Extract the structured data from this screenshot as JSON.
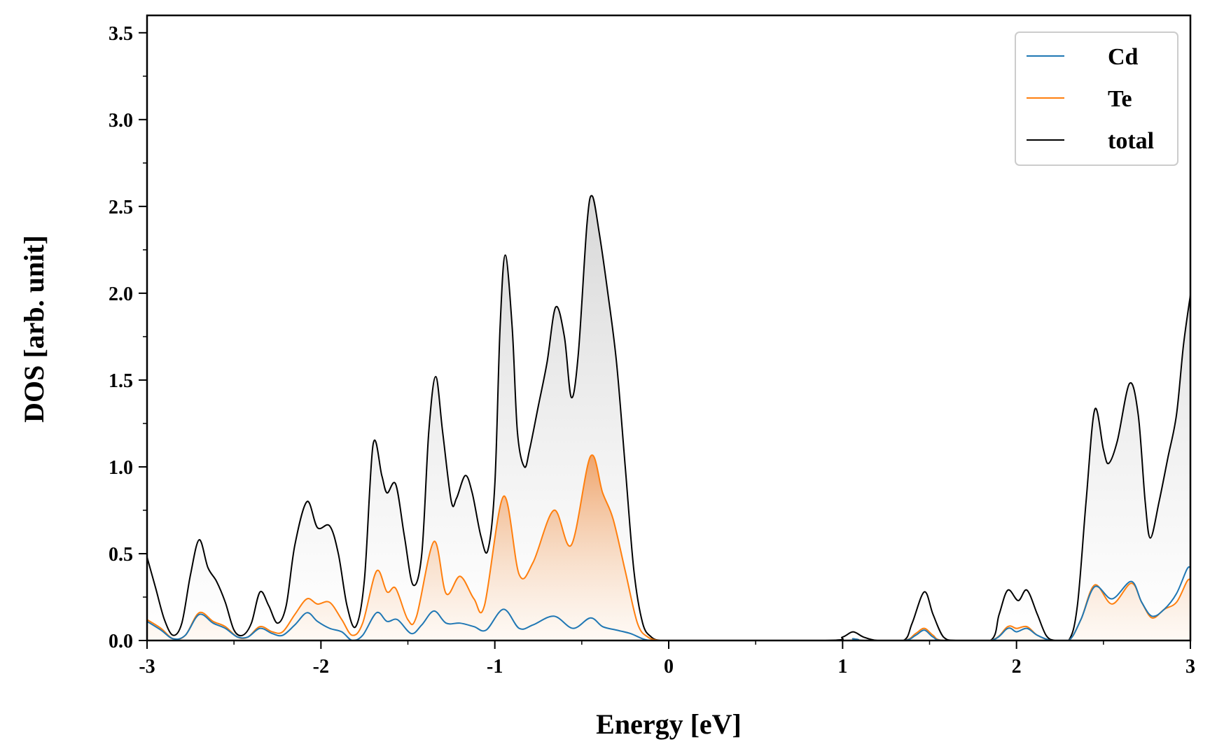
{
  "chart_data": {
    "type": "area",
    "xlabel": "Energy [eV]",
    "ylabel": "DOS [arb. unit]",
    "xlim": [
      -3,
      3
    ],
    "ylim": [
      0,
      3.6
    ],
    "xticks": [
      -3,
      -2,
      -1,
      0,
      1,
      2,
      3
    ],
    "xtick_labels": [
      "-3",
      "-2",
      "-1",
      "0",
      "1",
      "2",
      "3"
    ],
    "yticks": [
      0,
      0.5,
      1,
      1.5,
      2,
      2.5,
      3,
      3.5
    ],
    "ytick_labels": [
      "0.0",
      "0.5",
      "1.0",
      "1.5",
      "2.0",
      "2.5",
      "3.0",
      "3.5"
    ],
    "grid": false,
    "legend": "top-right",
    "series": [
      {
        "name": "Cd",
        "color": "#1f77b4",
        "filled": false,
        "points": [
          [
            -3.0,
            0.11
          ],
          [
            -2.92,
            0.06
          ],
          [
            -2.85,
            0.01
          ],
          [
            -2.78,
            0.03
          ],
          [
            -2.7,
            0.15
          ],
          [
            -2.62,
            0.1
          ],
          [
            -2.55,
            0.07
          ],
          [
            -2.48,
            0.02
          ],
          [
            -2.42,
            0.02
          ],
          [
            -2.35,
            0.07
          ],
          [
            -2.28,
            0.04
          ],
          [
            -2.22,
            0.03
          ],
          [
            -2.15,
            0.09
          ],
          [
            -2.08,
            0.16
          ],
          [
            -2.02,
            0.11
          ],
          [
            -1.95,
            0.07
          ],
          [
            -1.88,
            0.05
          ],
          [
            -1.82,
            0.0
          ],
          [
            -1.76,
            0.03
          ],
          [
            -1.68,
            0.16
          ],
          [
            -1.62,
            0.11
          ],
          [
            -1.56,
            0.12
          ],
          [
            -1.48,
            0.04
          ],
          [
            -1.42,
            0.09
          ],
          [
            -1.35,
            0.17
          ],
          [
            -1.28,
            0.1
          ],
          [
            -1.2,
            0.1
          ],
          [
            -1.12,
            0.08
          ],
          [
            -1.05,
            0.06
          ],
          [
            -0.95,
            0.18
          ],
          [
            -0.86,
            0.07
          ],
          [
            -0.78,
            0.09
          ],
          [
            -0.66,
            0.14
          ],
          [
            -0.55,
            0.07
          ],
          [
            -0.45,
            0.13
          ],
          [
            -0.38,
            0.08
          ],
          [
            -0.3,
            0.06
          ],
          [
            -0.22,
            0.04
          ],
          [
            -0.15,
            0.01
          ],
          [
            -0.1,
            0.0
          ],
          [
            0.0,
            0.0
          ],
          [
            1.0,
            0.0
          ],
          [
            1.06,
            0.01
          ],
          [
            1.12,
            0.0
          ],
          [
            1.35,
            0.0
          ],
          [
            1.42,
            0.03
          ],
          [
            1.47,
            0.06
          ],
          [
            1.52,
            0.02
          ],
          [
            1.58,
            0.0
          ],
          [
            1.85,
            0.0
          ],
          [
            1.95,
            0.07
          ],
          [
            2.0,
            0.05
          ],
          [
            2.06,
            0.07
          ],
          [
            2.12,
            0.03
          ],
          [
            2.2,
            0.0
          ],
          [
            2.3,
            0.0
          ],
          [
            2.37,
            0.12
          ],
          [
            2.45,
            0.31
          ],
          [
            2.55,
            0.24
          ],
          [
            2.66,
            0.34
          ],
          [
            2.72,
            0.22
          ],
          [
            2.78,
            0.14
          ],
          [
            2.85,
            0.18
          ],
          [
            2.92,
            0.27
          ],
          [
            2.98,
            0.41
          ],
          [
            3.0,
            0.42
          ]
        ]
      },
      {
        "name": "Te",
        "color": "#ff7f0e",
        "filled": true,
        "points": [
          [
            -3.0,
            0.12
          ],
          [
            -2.92,
            0.07
          ],
          [
            -2.85,
            0.01
          ],
          [
            -2.78,
            0.03
          ],
          [
            -2.7,
            0.16
          ],
          [
            -2.62,
            0.11
          ],
          [
            -2.55,
            0.08
          ],
          [
            -2.48,
            0.02
          ],
          [
            -2.42,
            0.02
          ],
          [
            -2.35,
            0.08
          ],
          [
            -2.28,
            0.05
          ],
          [
            -2.22,
            0.05
          ],
          [
            -2.15,
            0.15
          ],
          [
            -2.08,
            0.24
          ],
          [
            -2.02,
            0.21
          ],
          [
            -1.95,
            0.22
          ],
          [
            -1.88,
            0.12
          ],
          [
            -1.82,
            0.03
          ],
          [
            -1.76,
            0.1
          ],
          [
            -1.68,
            0.4
          ],
          [
            -1.62,
            0.28
          ],
          [
            -1.57,
            0.3
          ],
          [
            -1.5,
            0.12
          ],
          [
            -1.45,
            0.14
          ],
          [
            -1.35,
            0.57
          ],
          [
            -1.28,
            0.27
          ],
          [
            -1.2,
            0.37
          ],
          [
            -1.12,
            0.24
          ],
          [
            -1.06,
            0.2
          ],
          [
            -0.95,
            0.83
          ],
          [
            -0.86,
            0.38
          ],
          [
            -0.78,
            0.45
          ],
          [
            -0.66,
            0.75
          ],
          [
            -0.56,
            0.55
          ],
          [
            -0.45,
            1.06
          ],
          [
            -0.38,
            0.85
          ],
          [
            -0.32,
            0.7
          ],
          [
            -0.25,
            0.4
          ],
          [
            -0.18,
            0.1
          ],
          [
            -0.12,
            0.02
          ],
          [
            -0.05,
            0.0
          ],
          [
            0.0,
            0.0
          ],
          [
            1.0,
            0.0
          ],
          [
            1.06,
            0.01
          ],
          [
            1.12,
            0.0
          ],
          [
            1.35,
            0.0
          ],
          [
            1.42,
            0.04
          ],
          [
            1.47,
            0.07
          ],
          [
            1.52,
            0.03
          ],
          [
            1.58,
            0.0
          ],
          [
            1.85,
            0.0
          ],
          [
            1.95,
            0.08
          ],
          [
            2.0,
            0.07
          ],
          [
            2.06,
            0.08
          ],
          [
            2.12,
            0.03
          ],
          [
            2.2,
            0.0
          ],
          [
            2.3,
            0.0
          ],
          [
            2.37,
            0.12
          ],
          [
            2.45,
            0.32
          ],
          [
            2.55,
            0.21
          ],
          [
            2.66,
            0.33
          ],
          [
            2.72,
            0.22
          ],
          [
            2.78,
            0.13
          ],
          [
            2.85,
            0.18
          ],
          [
            2.92,
            0.22
          ],
          [
            2.98,
            0.34
          ],
          [
            3.0,
            0.35
          ]
        ]
      },
      {
        "name": "total",
        "color": "#000000",
        "filled": true,
        "points": [
          [
            -3.0,
            0.48
          ],
          [
            -2.95,
            0.3
          ],
          [
            -2.9,
            0.12
          ],
          [
            -2.85,
            0.03
          ],
          [
            -2.8,
            0.1
          ],
          [
            -2.75,
            0.38
          ],
          [
            -2.7,
            0.58
          ],
          [
            -2.65,
            0.42
          ],
          [
            -2.6,
            0.34
          ],
          [
            -2.55,
            0.22
          ],
          [
            -2.5,
            0.06
          ],
          [
            -2.45,
            0.03
          ],
          [
            -2.4,
            0.1
          ],
          [
            -2.35,
            0.28
          ],
          [
            -2.3,
            0.2
          ],
          [
            -2.25,
            0.1
          ],
          [
            -2.2,
            0.2
          ],
          [
            -2.15,
            0.55
          ],
          [
            -2.08,
            0.8
          ],
          [
            -2.02,
            0.65
          ],
          [
            -1.95,
            0.66
          ],
          [
            -1.9,
            0.5
          ],
          [
            -1.85,
            0.2
          ],
          [
            -1.8,
            0.08
          ],
          [
            -1.75,
            0.35
          ],
          [
            -1.7,
            1.13
          ],
          [
            -1.65,
            0.95
          ],
          [
            -1.62,
            0.85
          ],
          [
            -1.57,
            0.9
          ],
          [
            -1.52,
            0.6
          ],
          [
            -1.47,
            0.32
          ],
          [
            -1.42,
            0.5
          ],
          [
            -1.38,
            1.2
          ],
          [
            -1.34,
            1.52
          ],
          [
            -1.3,
            1.2
          ],
          [
            -1.25,
            0.8
          ],
          [
            -1.22,
            0.82
          ],
          [
            -1.17,
            0.95
          ],
          [
            -1.13,
            0.85
          ],
          [
            -1.08,
            0.6
          ],
          [
            -1.04,
            0.52
          ],
          [
            -1.0,
            0.9
          ],
          [
            -0.97,
            1.8
          ],
          [
            -0.94,
            2.22
          ],
          [
            -0.9,
            1.8
          ],
          [
            -0.87,
            1.2
          ],
          [
            -0.83,
            1.0
          ],
          [
            -0.8,
            1.1
          ],
          [
            -0.75,
            1.35
          ],
          [
            -0.7,
            1.6
          ],
          [
            -0.65,
            1.92
          ],
          [
            -0.6,
            1.75
          ],
          [
            -0.56,
            1.4
          ],
          [
            -0.52,
            1.65
          ],
          [
            -0.47,
            2.4
          ],
          [
            -0.44,
            2.56
          ],
          [
            -0.4,
            2.35
          ],
          [
            -0.35,
            2.0
          ],
          [
            -0.3,
            1.6
          ],
          [
            -0.25,
            1.0
          ],
          [
            -0.2,
            0.4
          ],
          [
            -0.15,
            0.1
          ],
          [
            -0.1,
            0.02
          ],
          [
            -0.05,
            0.0
          ],
          [
            0.0,
            0.0
          ],
          [
            0.9,
            0.0
          ],
          [
            1.0,
            0.02
          ],
          [
            1.06,
            0.05
          ],
          [
            1.12,
            0.02
          ],
          [
            1.2,
            0.0
          ],
          [
            1.35,
            0.0
          ],
          [
            1.4,
            0.1
          ],
          [
            1.47,
            0.28
          ],
          [
            1.52,
            0.15
          ],
          [
            1.58,
            0.02
          ],
          [
            1.65,
            0.0
          ],
          [
            1.85,
            0.0
          ],
          [
            1.9,
            0.15
          ],
          [
            1.95,
            0.29
          ],
          [
            2.01,
            0.23
          ],
          [
            2.06,
            0.29
          ],
          [
            2.12,
            0.15
          ],
          [
            2.17,
            0.03
          ],
          [
            2.22,
            0.0
          ],
          [
            2.3,
            0.0
          ],
          [
            2.35,
            0.2
          ],
          [
            2.4,
            0.8
          ],
          [
            2.45,
            1.33
          ],
          [
            2.5,
            1.1
          ],
          [
            2.53,
            1.02
          ],
          [
            2.58,
            1.15
          ],
          [
            2.65,
            1.48
          ],
          [
            2.7,
            1.3
          ],
          [
            2.74,
            0.8
          ],
          [
            2.77,
            0.59
          ],
          [
            2.82,
            0.8
          ],
          [
            2.87,
            1.05
          ],
          [
            2.92,
            1.3
          ],
          [
            2.96,
            1.7
          ],
          [
            3.0,
            1.99
          ]
        ]
      }
    ]
  }
}
